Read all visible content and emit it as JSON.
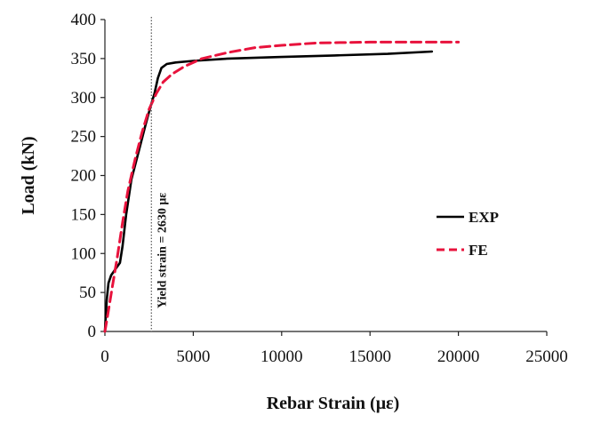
{
  "chart_data": {
    "type": "line",
    "xlabel": "Rebar Strain (με)",
    "ylabel": "Load (kN)",
    "xlim": [
      0,
      25000
    ],
    "ylim": [
      0,
      400
    ],
    "xticks": [
      0,
      5000,
      10000,
      15000,
      20000,
      25000
    ],
    "yticks": [
      0,
      50,
      100,
      150,
      200,
      250,
      300,
      350,
      400
    ],
    "grid": false,
    "legend_position": "right",
    "colors": {
      "exp": "#000000",
      "fe": "#e8123c",
      "yield_line": "#555555"
    },
    "annotation": {
      "text": "Yield strain = 2630 με",
      "x": 2630
    },
    "series": [
      {
        "name": "EXP",
        "style": "solid",
        "points": [
          [
            0,
            0
          ],
          [
            100,
            40
          ],
          [
            200,
            62
          ],
          [
            350,
            72
          ],
          [
            600,
            80
          ],
          [
            850,
            88
          ],
          [
            1000,
            110
          ],
          [
            1200,
            150
          ],
          [
            1500,
            195
          ],
          [
            1900,
            230
          ],
          [
            2300,
            265
          ],
          [
            2600,
            290
          ],
          [
            2800,
            305
          ],
          [
            3000,
            325
          ],
          [
            3200,
            338
          ],
          [
            3500,
            343
          ],
          [
            4000,
            345
          ],
          [
            5000,
            347
          ],
          [
            7000,
            350
          ],
          [
            10000,
            352
          ],
          [
            13000,
            354
          ],
          [
            16000,
            356
          ],
          [
            18500,
            359
          ]
        ]
      },
      {
        "name": "FE",
        "style": "dashed",
        "points": [
          [
            0,
            0
          ],
          [
            150,
            20
          ],
          [
            400,
            55
          ],
          [
            700,
            95
          ],
          [
            1000,
            140
          ],
          [
            1300,
            180
          ],
          [
            1700,
            220
          ],
          [
            2100,
            255
          ],
          [
            2500,
            285
          ],
          [
            2900,
            305
          ],
          [
            3300,
            320
          ],
          [
            3800,
            330
          ],
          [
            4500,
            340
          ],
          [
            5500,
            350
          ],
          [
            7000,
            358
          ],
          [
            8500,
            364
          ],
          [
            10000,
            367
          ],
          [
            12000,
            370
          ],
          [
            15000,
            371
          ],
          [
            20000,
            371
          ]
        ]
      }
    ]
  }
}
